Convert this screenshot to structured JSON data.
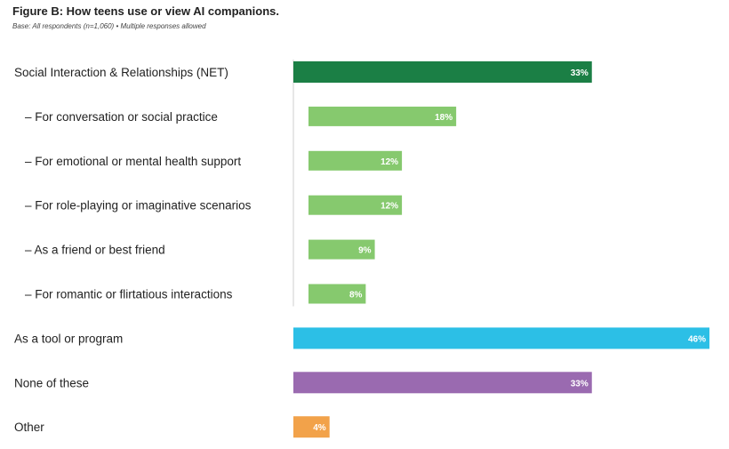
{
  "title": "Figure B: How teens use or view AI companions.",
  "subtitle": "Base: All respondents (n=1,060) • Multiple responses allowed",
  "chart_data": {
    "type": "bar",
    "orientation": "horizontal",
    "title": "Figure B: How teens use or view AI companions.",
    "subtitle": "Base: All respondents (n=1,060) • Multiple responses allowed",
    "xlim": [
      0,
      46
    ],
    "grid": false,
    "legend": "none",
    "unit": "%",
    "categories": [
      "Social Interaction & Relationships (NET)",
      "– For conversation or social practice",
      "– For emotional or mental health support",
      "– For role-playing or imaginative scenarios",
      "– As a friend or best friend",
      "– For romantic or flirtatious interactions",
      "As a tool or program",
      "None of these",
      "Other"
    ],
    "values": [
      33,
      18,
      12,
      12,
      9,
      8,
      46,
      33,
      4
    ],
    "value_labels": [
      "33%",
      "18%",
      "12%",
      "12%",
      "9%",
      "8%",
      "46%",
      "33%",
      "4%"
    ],
    "is_subitem": [
      false,
      true,
      true,
      true,
      true,
      true,
      false,
      false,
      false
    ],
    "colors": [
      "#1b7f45",
      "#86c96e",
      "#86c96e",
      "#86c96e",
      "#86c96e",
      "#86c96e",
      "#2cbfe6",
      "#9a6ab0",
      "#f2a24a"
    ]
  }
}
